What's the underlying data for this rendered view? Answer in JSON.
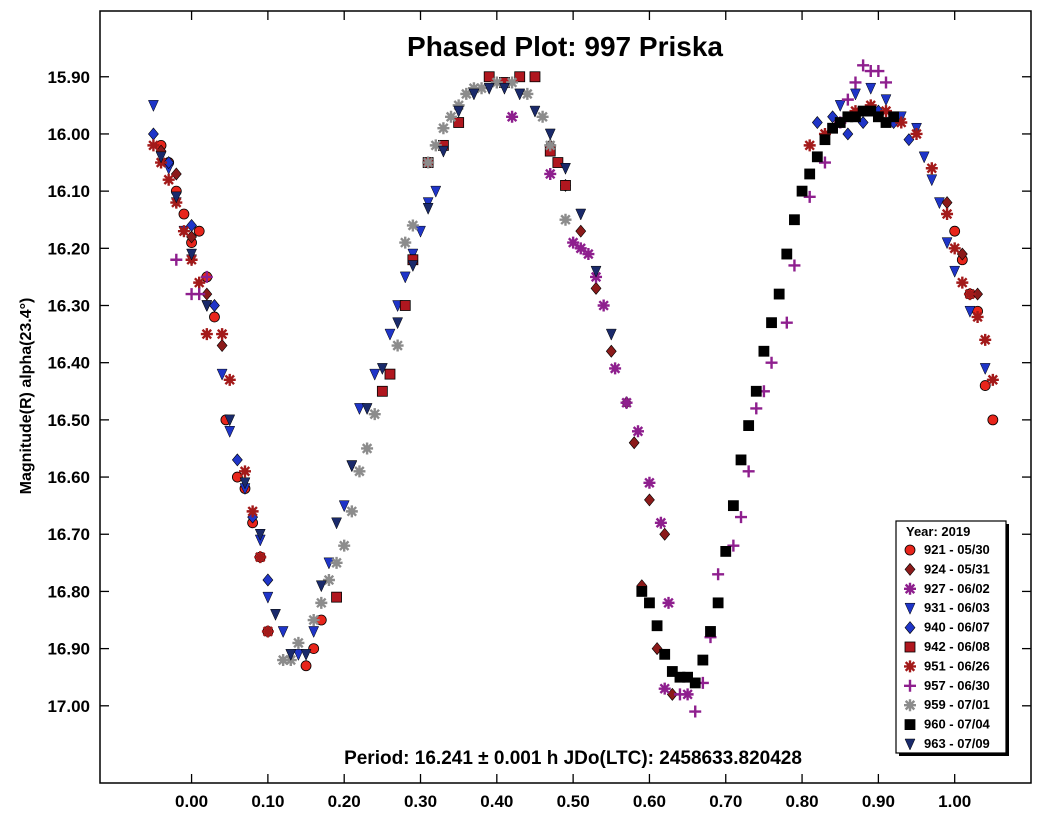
{
  "chart_data": {
    "type": "scatter",
    "title": "Phased Plot: 997 Priska",
    "xlabel": "",
    "ylabel": "Magnitude(R) alpha(23.4°)",
    "footer": "Period: 16.241 ± 0.001 h  JDo(LTC): 2458633.820428",
    "xlim": [
      -0.12,
      1.1
    ],
    "ylim": [
      17.135,
      15.785
    ],
    "y_inverted": true,
    "x_ticks": [
      0.0,
      0.1,
      0.2,
      0.3,
      0.4,
      0.5,
      0.6,
      0.7,
      0.8,
      0.9,
      1.0
    ],
    "x_tick_labels": [
      "0.00",
      "0.10",
      "0.20",
      "0.30",
      "0.40",
      "0.50",
      "0.60",
      "0.70",
      "0.80",
      "0.90",
      "1.00"
    ],
    "y_ticks": [
      15.9,
      16.0,
      16.1,
      16.2,
      16.3,
      16.4,
      16.5,
      16.6,
      16.7,
      16.8,
      16.9,
      17.0
    ],
    "y_tick_labels": [
      "15.90",
      "16.00",
      "16.10",
      "16.20",
      "16.30",
      "16.40",
      "16.50",
      "16.60",
      "16.70",
      "16.80",
      "16.90",
      "17.00"
    ],
    "grid": false,
    "legend_position": "bottom-right",
    "legend_title": "Year: 2019",
    "series": [
      {
        "name": "921 - 05/30",
        "marker": "circle",
        "color": "#e8251b",
        "x": [
          -0.04,
          -0.03,
          -0.02,
          -0.01,
          0.0,
          0.01,
          0.02,
          0.03,
          0.045,
          0.06,
          0.07,
          0.08,
          0.09,
          0.1,
          0.15,
          0.16,
          0.17,
          1.0,
          1.01,
          1.02,
          1.03,
          1.04,
          1.05
        ],
        "y": [
          16.02,
          16.05,
          16.1,
          16.14,
          16.19,
          16.17,
          16.25,
          16.32,
          16.5,
          16.6,
          16.62,
          16.68,
          16.74,
          16.87,
          16.93,
          16.9,
          16.85,
          16.17,
          16.22,
          16.28,
          16.31,
          16.44,
          16.5
        ]
      },
      {
        "name": "924 - 05/31",
        "marker": "diamond",
        "color": "#8b1a1a",
        "x": [
          -0.04,
          -0.02,
          0.0,
          0.02,
          0.04,
          0.47,
          0.49,
          0.51,
          0.53,
          0.55,
          0.57,
          0.58,
          0.6,
          0.62,
          0.59,
          0.61,
          0.63,
          0.99,
          1.01,
          1.03
        ],
        "y": [
          16.03,
          16.07,
          16.18,
          16.28,
          16.37,
          16.02,
          16.09,
          16.17,
          16.27,
          16.38,
          16.47,
          16.54,
          16.64,
          16.7,
          16.79,
          16.9,
          16.98,
          16.12,
          16.21,
          16.28
        ]
      },
      {
        "name": "927 - 06/02",
        "marker": "asterisk",
        "color": "#8e1f8e",
        "x": [
          0.42,
          0.47,
          0.5,
          0.51,
          0.52,
          0.53,
          0.54,
          0.555,
          0.57,
          0.585,
          0.6,
          0.615,
          0.625,
          0.62,
          0.65
        ],
        "y": [
          15.97,
          16.07,
          16.19,
          16.2,
          16.21,
          16.25,
          16.3,
          16.41,
          16.47,
          16.52,
          16.61,
          16.68,
          16.82,
          16.97,
          16.98
        ]
      },
      {
        "name": "931 - 06/03",
        "marker": "triangle-down",
        "color": "#1f35c8",
        "x": [
          -0.05,
          -0.03,
          -0.02,
          -0.01,
          0.0,
          0.02,
          0.04,
          0.05,
          0.07,
          0.09,
          0.1,
          0.12,
          0.14,
          0.16,
          0.18,
          0.2,
          0.21,
          0.22,
          0.24,
          0.26,
          0.27,
          0.28,
          0.29,
          0.3,
          0.31,
          0.32,
          0.85,
          0.87,
          0.89,
          0.91,
          0.93,
          0.95,
          0.96,
          0.97,
          0.98,
          0.99,
          1.0,
          1.02,
          1.04
        ],
        "y": [
          15.95,
          16.06,
          16.12,
          16.17,
          16.22,
          16.3,
          16.42,
          16.52,
          16.62,
          16.71,
          16.81,
          16.87,
          16.91,
          16.87,
          16.75,
          16.65,
          16.58,
          16.48,
          16.42,
          16.35,
          16.3,
          16.25,
          16.21,
          16.17,
          16.12,
          16.1,
          15.95,
          15.93,
          15.92,
          15.94,
          15.97,
          15.99,
          16.04,
          16.08,
          16.12,
          16.19,
          16.24,
          16.31,
          16.41
        ]
      },
      {
        "name": "940 - 06/07",
        "marker": "diamond",
        "color": "#1f35c8",
        "x": [
          -0.05,
          -0.03,
          0.0,
          0.03,
          0.06,
          0.08,
          0.1,
          0.82,
          0.84,
          0.86,
          0.88,
          0.9,
          0.92,
          0.94
        ],
        "y": [
          16.0,
          16.05,
          16.16,
          16.3,
          16.57,
          16.67,
          16.78,
          15.98,
          15.97,
          16.0,
          15.98,
          15.96,
          15.98,
          16.01
        ]
      },
      {
        "name": "942 - 06/08",
        "marker": "square",
        "color": "#b0171f",
        "x": [
          0.25,
          0.26,
          0.28,
          0.29,
          0.31,
          0.33,
          0.35,
          0.39,
          0.41,
          0.43,
          0.45,
          0.47,
          0.48,
          0.49,
          0.19
        ],
        "y": [
          16.45,
          16.42,
          16.3,
          16.22,
          16.05,
          16.02,
          15.98,
          15.9,
          15.91,
          15.9,
          15.9,
          16.03,
          16.05,
          16.09,
          16.81
        ]
      },
      {
        "name": "951 - 06/26",
        "marker": "x-star",
        "color": "#a31a1a",
        "x": [
          -0.05,
          -0.04,
          -0.03,
          -0.02,
          -0.01,
          0.0,
          0.01,
          0.02,
          0.04,
          0.05,
          0.07,
          0.08,
          0.09,
          0.1,
          0.81,
          0.83,
          0.85,
          0.87,
          0.89,
          0.91,
          0.93,
          0.95,
          0.97,
          0.99,
          1.0,
          1.01,
          1.02,
          1.03,
          1.04,
          1.05
        ],
        "y": [
          16.02,
          16.05,
          16.08,
          16.12,
          16.17,
          16.22,
          16.26,
          16.35,
          16.35,
          16.43,
          16.59,
          16.66,
          16.74,
          16.87,
          16.02,
          16.0,
          15.98,
          15.96,
          15.95,
          15.96,
          15.98,
          16.0,
          16.06,
          16.14,
          16.2,
          16.26,
          16.28,
          16.32,
          16.36,
          16.43
        ]
      },
      {
        "name": "957 - 06/30",
        "marker": "plus",
        "color": "#8e1f8e",
        "x": [
          -0.02,
          0.0,
          0.01,
          0.02,
          0.64,
          0.66,
          0.67,
          0.68,
          0.69,
          0.71,
          0.72,
          0.73,
          0.74,
          0.75,
          0.76,
          0.78,
          0.79,
          0.81,
          0.83,
          0.85,
          0.86,
          0.87,
          0.88,
          0.89,
          0.9,
          0.91
        ],
        "y": [
          16.22,
          16.28,
          16.28,
          16.25,
          16.98,
          17.01,
          16.96,
          16.88,
          16.77,
          16.72,
          16.67,
          16.59,
          16.48,
          16.45,
          16.4,
          16.33,
          16.23,
          16.11,
          16.05,
          15.98,
          15.94,
          15.91,
          15.88,
          15.89,
          15.89,
          15.91
        ]
      },
      {
        "name": "959 - 07/01",
        "marker": "x-star",
        "color": "#8c8c8c",
        "x": [
          0.12,
          0.13,
          0.14,
          0.16,
          0.17,
          0.18,
          0.19,
          0.2,
          0.21,
          0.22,
          0.23,
          0.24,
          0.27,
          0.28,
          0.29,
          0.31,
          0.32,
          0.33,
          0.34,
          0.35,
          0.36,
          0.37,
          0.38,
          0.4,
          0.42,
          0.44,
          0.46,
          0.47,
          0.49
        ],
        "y": [
          16.92,
          16.92,
          16.89,
          16.85,
          16.82,
          16.78,
          16.75,
          16.72,
          16.66,
          16.59,
          16.55,
          16.49,
          16.37,
          16.19,
          16.16,
          16.05,
          16.02,
          15.99,
          15.97,
          15.95,
          15.93,
          15.92,
          15.92,
          15.91,
          15.91,
          15.93,
          15.97,
          16.02,
          16.15
        ]
      },
      {
        "name": "960 - 07/04",
        "marker": "square",
        "color": "#000000",
        "x": [
          0.59,
          0.6,
          0.61,
          0.62,
          0.63,
          0.64,
          0.65,
          0.66,
          0.67,
          0.68,
          0.69,
          0.7,
          0.71,
          0.72,
          0.73,
          0.74,
          0.75,
          0.76,
          0.77,
          0.78,
          0.79,
          0.8,
          0.81,
          0.82,
          0.83,
          0.84,
          0.85,
          0.86,
          0.87,
          0.88,
          0.89,
          0.9,
          0.91,
          0.92
        ],
        "y": [
          16.8,
          16.82,
          16.86,
          16.91,
          16.94,
          16.95,
          16.95,
          16.96,
          16.92,
          16.87,
          16.82,
          16.73,
          16.65,
          16.57,
          16.51,
          16.45,
          16.38,
          16.33,
          16.28,
          16.21,
          16.15,
          16.1,
          16.07,
          16.04,
          16.01,
          15.99,
          15.98,
          15.97,
          15.97,
          15.96,
          15.96,
          15.97,
          15.98,
          15.97
        ]
      },
      {
        "name": "963 - 07/09",
        "marker": "triangle-down",
        "color": "#1a2a6b",
        "x": [
          -0.04,
          -0.02,
          0.0,
          0.02,
          0.05,
          0.07,
          0.09,
          0.11,
          0.13,
          0.15,
          0.17,
          0.19,
          0.21,
          0.23,
          0.25,
          0.27,
          0.29,
          0.31,
          0.33,
          0.35,
          0.37,
          0.39,
          0.41,
          0.43,
          0.45,
          0.47,
          0.49,
          0.51,
          0.53,
          0.55
        ],
        "y": [
          16.04,
          16.11,
          16.21,
          16.3,
          16.5,
          16.61,
          16.7,
          16.84,
          16.91,
          16.91,
          16.79,
          16.68,
          16.58,
          16.48,
          16.41,
          16.33,
          16.23,
          16.13,
          16.03,
          15.96,
          15.93,
          15.92,
          15.92,
          15.93,
          15.96,
          16.0,
          16.06,
          16.14,
          16.24,
          16.35
        ]
      }
    ]
  }
}
